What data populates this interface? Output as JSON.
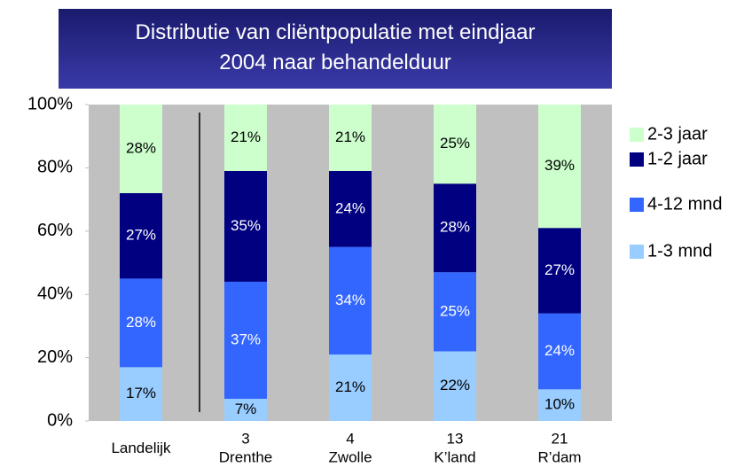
{
  "chart_data": {
    "type": "bar",
    "stacked": true,
    "title": "Distributie van cliëntpopulatie met eindjaar\n2004 naar behandelduur",
    "categories": [
      "Landelijk",
      "3\nDrenthe",
      "4\nZwolle",
      "13\nK’land",
      "21\nR’dam"
    ],
    "series": [
      {
        "name": "1-3 mnd",
        "color": "#99ccff",
        "values": [
          17,
          7,
          21,
          22,
          10
        ],
        "value_labels": [
          "17%",
          "7%",
          "21%",
          "22%",
          "10%"
        ]
      },
      {
        "name": "4-12 mnd",
        "color": "#3366ff",
        "values": [
          28,
          37,
          34,
          25,
          24
        ],
        "value_labels": [
          "28%",
          "37%",
          "34%",
          "25%",
          "24%"
        ]
      },
      {
        "name": "1-2 jaar",
        "color": "#000080",
        "values": [
          27,
          35,
          24,
          28,
          27
        ],
        "value_labels": [
          "27%",
          "35%",
          "24%",
          "28%",
          "27%"
        ]
      },
      {
        "name": "2-3 jaar",
        "color": "#ccffcc",
        "values": [
          28,
          21,
          21,
          25,
          39
        ],
        "value_labels": [
          "28%",
          "21%",
          "21%",
          "25%",
          "39%"
        ]
      }
    ],
    "ylim": [
      0,
      100
    ],
    "yticks": [
      {
        "value": 0,
        "label": "0%"
      },
      {
        "value": 20,
        "label": "20%"
      },
      {
        "value": 40,
        "label": "40%"
      },
      {
        "value": 60,
        "label": "60%"
      },
      {
        "value": 80,
        "label": "80%"
      },
      {
        "value": 100,
        "label": "100%"
      }
    ],
    "legend": "right"
  }
}
